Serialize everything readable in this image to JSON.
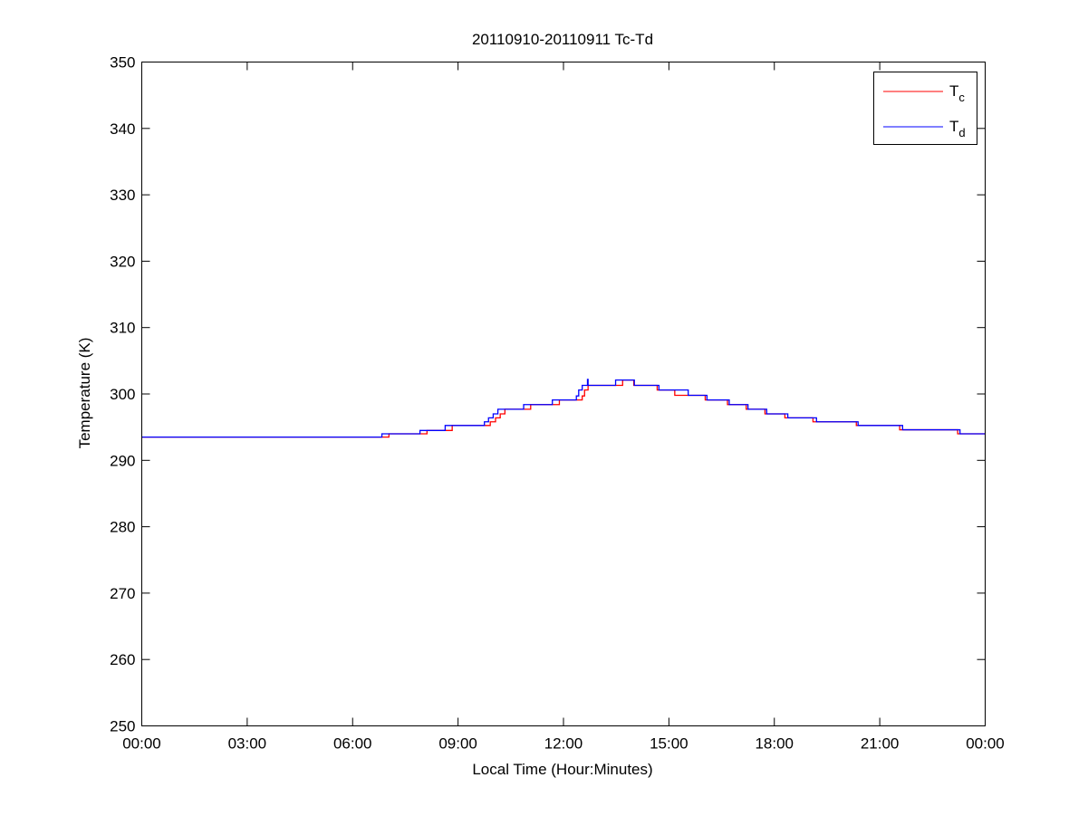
{
  "chart_data": {
    "type": "line",
    "title": "20110910-20110911 Tc-Td",
    "xlabel": "Local Time (Hour:Minutes)",
    "ylabel": "Temperature (K)",
    "xticks": [
      "00:00",
      "03:00",
      "06:00",
      "09:00",
      "12:00",
      "15:00",
      "18:00",
      "21:00",
      "00:00"
    ],
    "yticks": [
      250,
      260,
      270,
      280,
      290,
      300,
      310,
      320,
      330,
      340,
      350
    ],
    "ylim": [
      250,
      350
    ],
    "xlim": [
      "00:00",
      "24:00"
    ],
    "grid": false,
    "legend_position": "top-right",
    "step": true,
    "series": [
      {
        "name": "Tc",
        "label_main": "T",
        "label_sub": "c",
        "color": "#ff0000",
        "points": [
          [
            "00:00",
            293.5
          ],
          [
            "07:02",
            294.0
          ],
          [
            "08:07",
            294.5
          ],
          [
            "08:50",
            295.25
          ],
          [
            "09:55",
            295.8
          ],
          [
            "10:04",
            296.4
          ],
          [
            "10:12",
            297.0
          ],
          [
            "10:20",
            297.7
          ],
          [
            "11:04",
            298.4
          ],
          [
            "11:53",
            299.1
          ],
          [
            "12:32",
            299.7
          ],
          [
            "12:36",
            300.6
          ],
          [
            "12:42",
            301.3
          ],
          [
            "13:41",
            302.1
          ],
          [
            "14:00",
            301.3
          ],
          [
            "14:40",
            300.6
          ],
          [
            "15:10",
            299.8
          ],
          [
            "16:02",
            299.1
          ],
          [
            "16:40",
            298.4
          ],
          [
            "17:12",
            297.7
          ],
          [
            "17:44",
            297.0
          ],
          [
            "18:18",
            296.4
          ],
          [
            "19:06",
            295.8
          ],
          [
            "20:20",
            295.25
          ],
          [
            "21:34",
            294.6
          ],
          [
            "23:13",
            294.0
          ],
          [
            "24:00",
            294.0
          ]
        ]
      },
      {
        "name": "Td",
        "label_main": "T",
        "label_sub": "d",
        "color": "#0000ff",
        "points": [
          [
            "00:00",
            293.5
          ],
          [
            "06:50",
            294.0
          ],
          [
            "07:55",
            294.5
          ],
          [
            "08:38",
            295.25
          ],
          [
            "09:45",
            295.8
          ],
          [
            "09:52",
            296.4
          ],
          [
            "10:00",
            297.0
          ],
          [
            "10:08",
            297.7
          ],
          [
            "10:52",
            298.4
          ],
          [
            "11:41",
            299.1
          ],
          [
            "12:22",
            299.7
          ],
          [
            "12:26",
            300.6
          ],
          [
            "12:32",
            301.3
          ],
          [
            "12:41",
            302.2
          ],
          [
            "12:42",
            301.3
          ],
          [
            "13:29",
            302.1
          ],
          [
            "14:01",
            301.3
          ],
          [
            "14:43",
            300.6
          ],
          [
            "15:33",
            299.8
          ],
          [
            "16:05",
            299.1
          ],
          [
            "16:43",
            298.4
          ],
          [
            "17:15",
            297.7
          ],
          [
            "17:47",
            297.0
          ],
          [
            "18:23",
            296.4
          ],
          [
            "19:12",
            295.8
          ],
          [
            "20:23",
            295.25
          ],
          [
            "21:39",
            294.6
          ],
          [
            "23:17",
            294.0
          ],
          [
            "24:00",
            294.0
          ]
        ]
      }
    ]
  }
}
